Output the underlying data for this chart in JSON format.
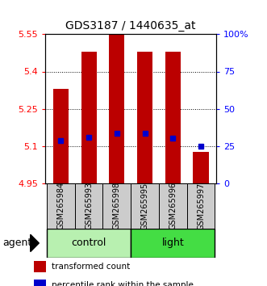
{
  "title": "GDS3187 / 1440635_at",
  "samples": [
    "GSM265984",
    "GSM265993",
    "GSM265998",
    "GSM265995",
    "GSM265996",
    "GSM265997"
  ],
  "bar_tops": [
    5.33,
    5.48,
    5.55,
    5.48,
    5.48,
    5.075
  ],
  "bar_bottom": 4.95,
  "percentile_values": [
    5.12,
    5.135,
    5.15,
    5.15,
    5.13,
    5.1
  ],
  "ylim_left": [
    4.95,
    5.55
  ],
  "ylim_right": [
    0,
    100
  ],
  "yticks_left": [
    4.95,
    5.1,
    5.25,
    5.4,
    5.55
  ],
  "yticks_right": [
    0,
    25,
    50,
    75,
    100
  ],
  "ytick_labels_left": [
    "4.95",
    "5.1",
    "5.25",
    "5.4",
    "5.55"
  ],
  "ytick_labels_right": [
    "0",
    "25",
    "50",
    "75",
    "100%"
  ],
  "bar_color": "#bb0000",
  "percentile_color": "#0000cc",
  "group_colors_control": "#b8f0b0",
  "group_colors_light": "#44dd44",
  "bar_width": 0.55,
  "sample_box_color": "#cccccc",
  "sample_text_fontsize": 7,
  "group_text_fontsize": 9,
  "axis_label_fontsize": 8,
  "title_fontsize": 10
}
